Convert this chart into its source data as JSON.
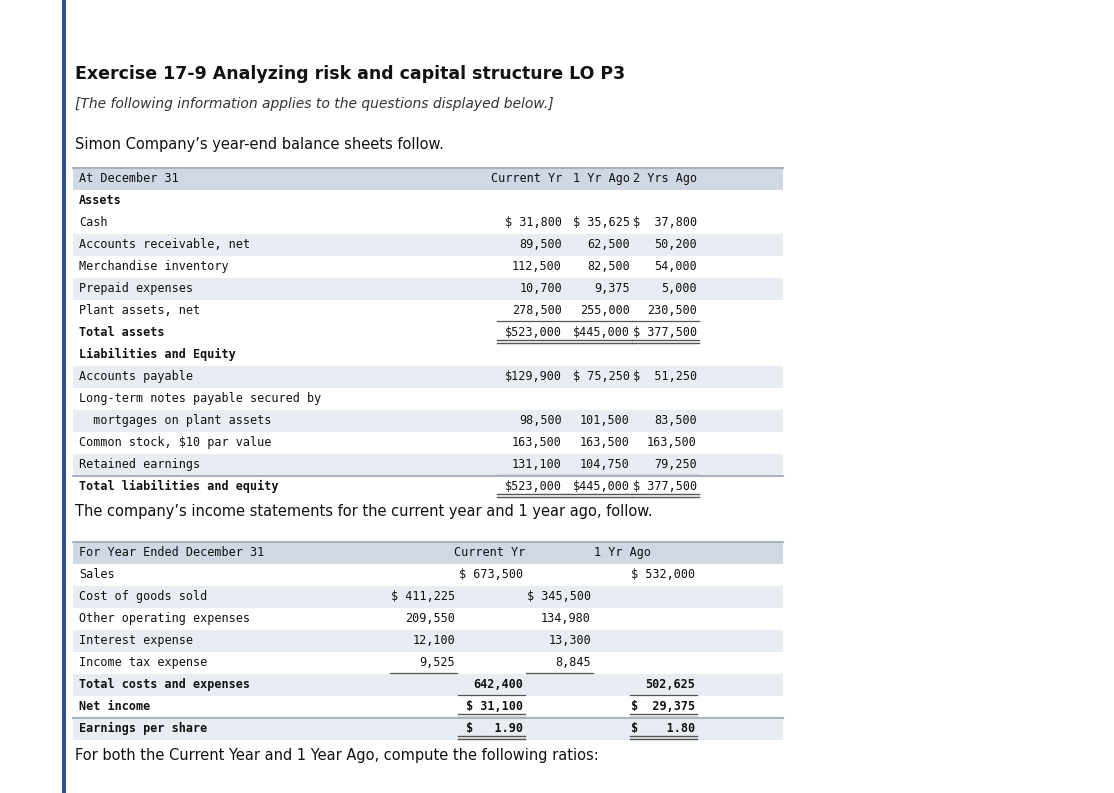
{
  "title": "Exercise 17-9 Analyzing risk and capital structure LO P3",
  "subtitle": "[The following information applies to the questions displayed below.]",
  "intro": "Simon Company’s year-end balance sheets follow.",
  "bg_color": "#ffffff",
  "table_header_bg": "#d0d8e4",
  "table_row_alt": "#e8edf3",
  "table_row_white": "#ffffff",
  "left_bar_color": "#2b4e8c",
  "table1_header": [
    "At December 31",
    "Current Yr",
    "1 Yr Ago",
    "2 Yrs Ago"
  ],
  "table1_rows": [
    [
      "Assets",
      "",
      "",
      ""
    ],
    [
      "Cash",
      "$ 31,800",
      "$ 35,625",
      "$  37,800"
    ],
    [
      "Accounts receivable, net",
      "89,500",
      "62,500",
      "50,200"
    ],
    [
      "Merchandise inventory",
      "112,500",
      "82,500",
      "54,000"
    ],
    [
      "Prepaid expenses",
      "10,700",
      "9,375",
      "5,000"
    ],
    [
      "Plant assets, net",
      "278,500",
      "255,000",
      "230,500"
    ],
    [
      "Total assets",
      "$523,000",
      "$445,000",
      "$ 377,500"
    ],
    [
      "Liabilities and Equity",
      "",
      "",
      ""
    ],
    [
      "Accounts payable",
      "$129,900",
      "$ 75,250",
      "$  51,250"
    ],
    [
      "Long-term notes payable secured by",
      "",
      "",
      ""
    ],
    [
      "  mortgages on plant assets",
      "98,500",
      "101,500",
      "83,500"
    ],
    [
      "Common stock, $10 par value",
      "163,500",
      "163,500",
      "163,500"
    ],
    [
      "Retained earnings",
      "131,100",
      "104,750",
      "79,250"
    ],
    [
      "Total liabilities and equity",
      "$523,000",
      "$445,000",
      "$ 377,500"
    ]
  ],
  "t1_bold_rows": [
    0,
    6,
    7,
    13
  ],
  "t1_underline_before_total": [
    5,
    12
  ],
  "t1_double_under": [
    6,
    13
  ],
  "income_intro": "The company’s income statements for the current year and 1 year ago, follow.",
  "table2_header": [
    "For Year Ended December 31",
    "Current Yr",
    "1 Yr Ago"
  ],
  "table2_rows": [
    [
      "Sales",
      "",
      "$ 673,500",
      "",
      "$ 532,000"
    ],
    [
      "Cost of goods sold",
      "$ 411,225",
      "",
      "$ 345,500",
      ""
    ],
    [
      "Other operating expenses",
      "209,550",
      "",
      "134,980",
      ""
    ],
    [
      "Interest expense",
      "12,100",
      "",
      "13,300",
      ""
    ],
    [
      "Income tax expense",
      "9,525",
      "",
      "8,845",
      ""
    ],
    [
      "Total costs and expenses",
      "",
      "642,400",
      "",
      "502,625"
    ],
    [
      "Net income",
      "",
      "$ 31,100",
      "",
      "$  29,375"
    ],
    [
      "Earnings per share",
      "",
      "$   1.90",
      "",
      "$    1.80"
    ]
  ],
  "footer": "For both the Current Year and 1 Year Ago, compute the following ratios:"
}
